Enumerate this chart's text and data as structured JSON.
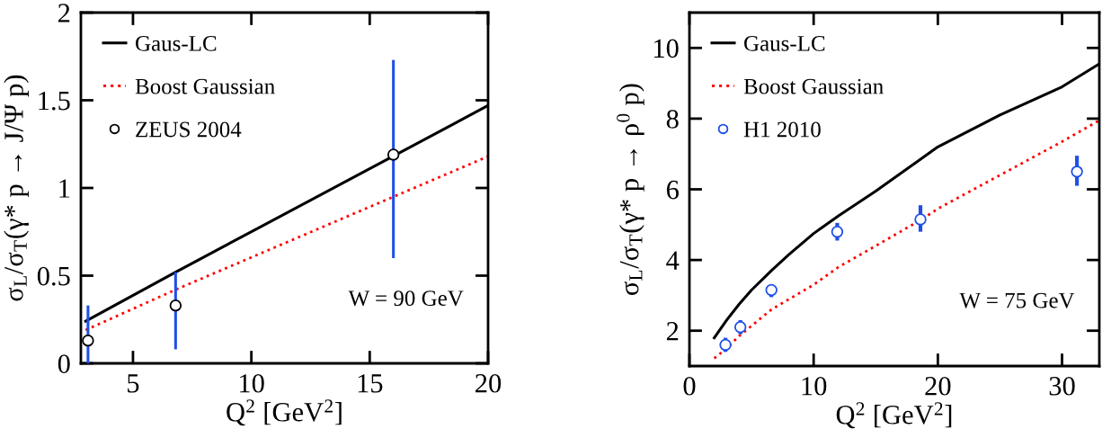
{
  "chart_data": [
    {
      "type": "line",
      "xlabel": "Q$^{2}$ [GeV$^{2}$]",
      "ylabel": "σ$_{L}$/σ$_{T}$(γ* p → J/Ψ p)",
      "xlim": [
        2.8,
        20
      ],
      "xticks": [
        5,
        10,
        15,
        20
      ],
      "ylim": [
        0,
        2
      ],
      "yticks": [
        0,
        0.5,
        1,
        1.5,
        2
      ],
      "legend": "top left",
      "grid": false,
      "annotations": [
        "W = 90 GeV"
      ],
      "series": [
        {
          "name": "Gaus-LC",
          "color": "#000000",
          "line_style": "solid",
          "x": [
            3.0,
            6.8,
            20
          ],
          "values": [
            0.24,
            0.52,
            1.47
          ]
        },
        {
          "name": "Boost Gaussian",
          "color": "#ff0000",
          "line_style": "dotted",
          "x": [
            3.0,
            6.8,
            20
          ],
          "values": [
            0.19,
            0.42,
            1.18
          ]
        },
        {
          "name": "ZEUS 2004",
          "type": "scatter",
          "color": "#000000",
          "marker": "circle",
          "x": [
            3.1,
            6.8,
            16
          ],
          "values": [
            0.13,
            0.33,
            1.19
          ],
          "errors": [
            [
              0,
              0.33
            ],
            [
              0.08,
              0.52
            ],
            [
              0.6,
              1.73
            ]
          ]
        }
      ]
    },
    {
      "type": "line",
      "xlabel": "Q$^{2}$ [GeV$^{2}$]",
      "ylabel": "σ$_{L}$/σ$_{T}$(γ* p → ρ$^{0}$ p)",
      "xlim": [
        0,
        33
      ],
      "xticks": [
        0,
        10,
        20,
        30
      ],
      "ylim": [
        1,
        11
      ],
      "yticks": [
        2,
        4,
        6,
        8,
        10
      ],
      "legend": "top left",
      "grid": false,
      "annotations": [
        "W = 75 GeV"
      ],
      "series": [
        {
          "name": "Gaus-LC",
          "color": "#000000",
          "line_style": "solid",
          "x": [
            2,
            3,
            4,
            5,
            6.6,
            8,
            10,
            12,
            15,
            20,
            25,
            30,
            33
          ],
          "values": [
            1.8,
            2.3,
            2.75,
            3.15,
            3.7,
            4.15,
            4.75,
            5.25,
            5.95,
            7.2,
            8.1,
            8.9,
            9.55
          ]
        },
        {
          "name": "Boost Gaussian",
          "color": "#ff0000",
          "line_style": "dotted",
          "x": [
            2,
            3,
            4,
            6.6,
            10,
            12,
            15,
            18.7,
            20,
            25,
            30,
            33
          ],
          "values": [
            1.22,
            1.5,
            1.85,
            2.6,
            3.3,
            3.8,
            4.4,
            5.15,
            5.45,
            6.4,
            7.35,
            7.95
          ]
        },
        {
          "name": "H1 2010",
          "type": "scatter",
          "color": "#1f4fe8",
          "marker": "circle",
          "x": [
            2.9,
            4.1,
            6.6,
            11.9,
            18.6,
            31.2
          ],
          "values": [
            1.6,
            2.1,
            3.15,
            4.8,
            5.15,
            6.5
          ],
          "errors": [
            [
              1.4,
              1.8
            ],
            [
              1.9,
              2.3
            ],
            [
              2.95,
              3.3
            ],
            [
              4.55,
              5.05
            ],
            [
              4.8,
              5.55
            ],
            [
              6.1,
              6.95
            ]
          ]
        }
      ]
    }
  ]
}
